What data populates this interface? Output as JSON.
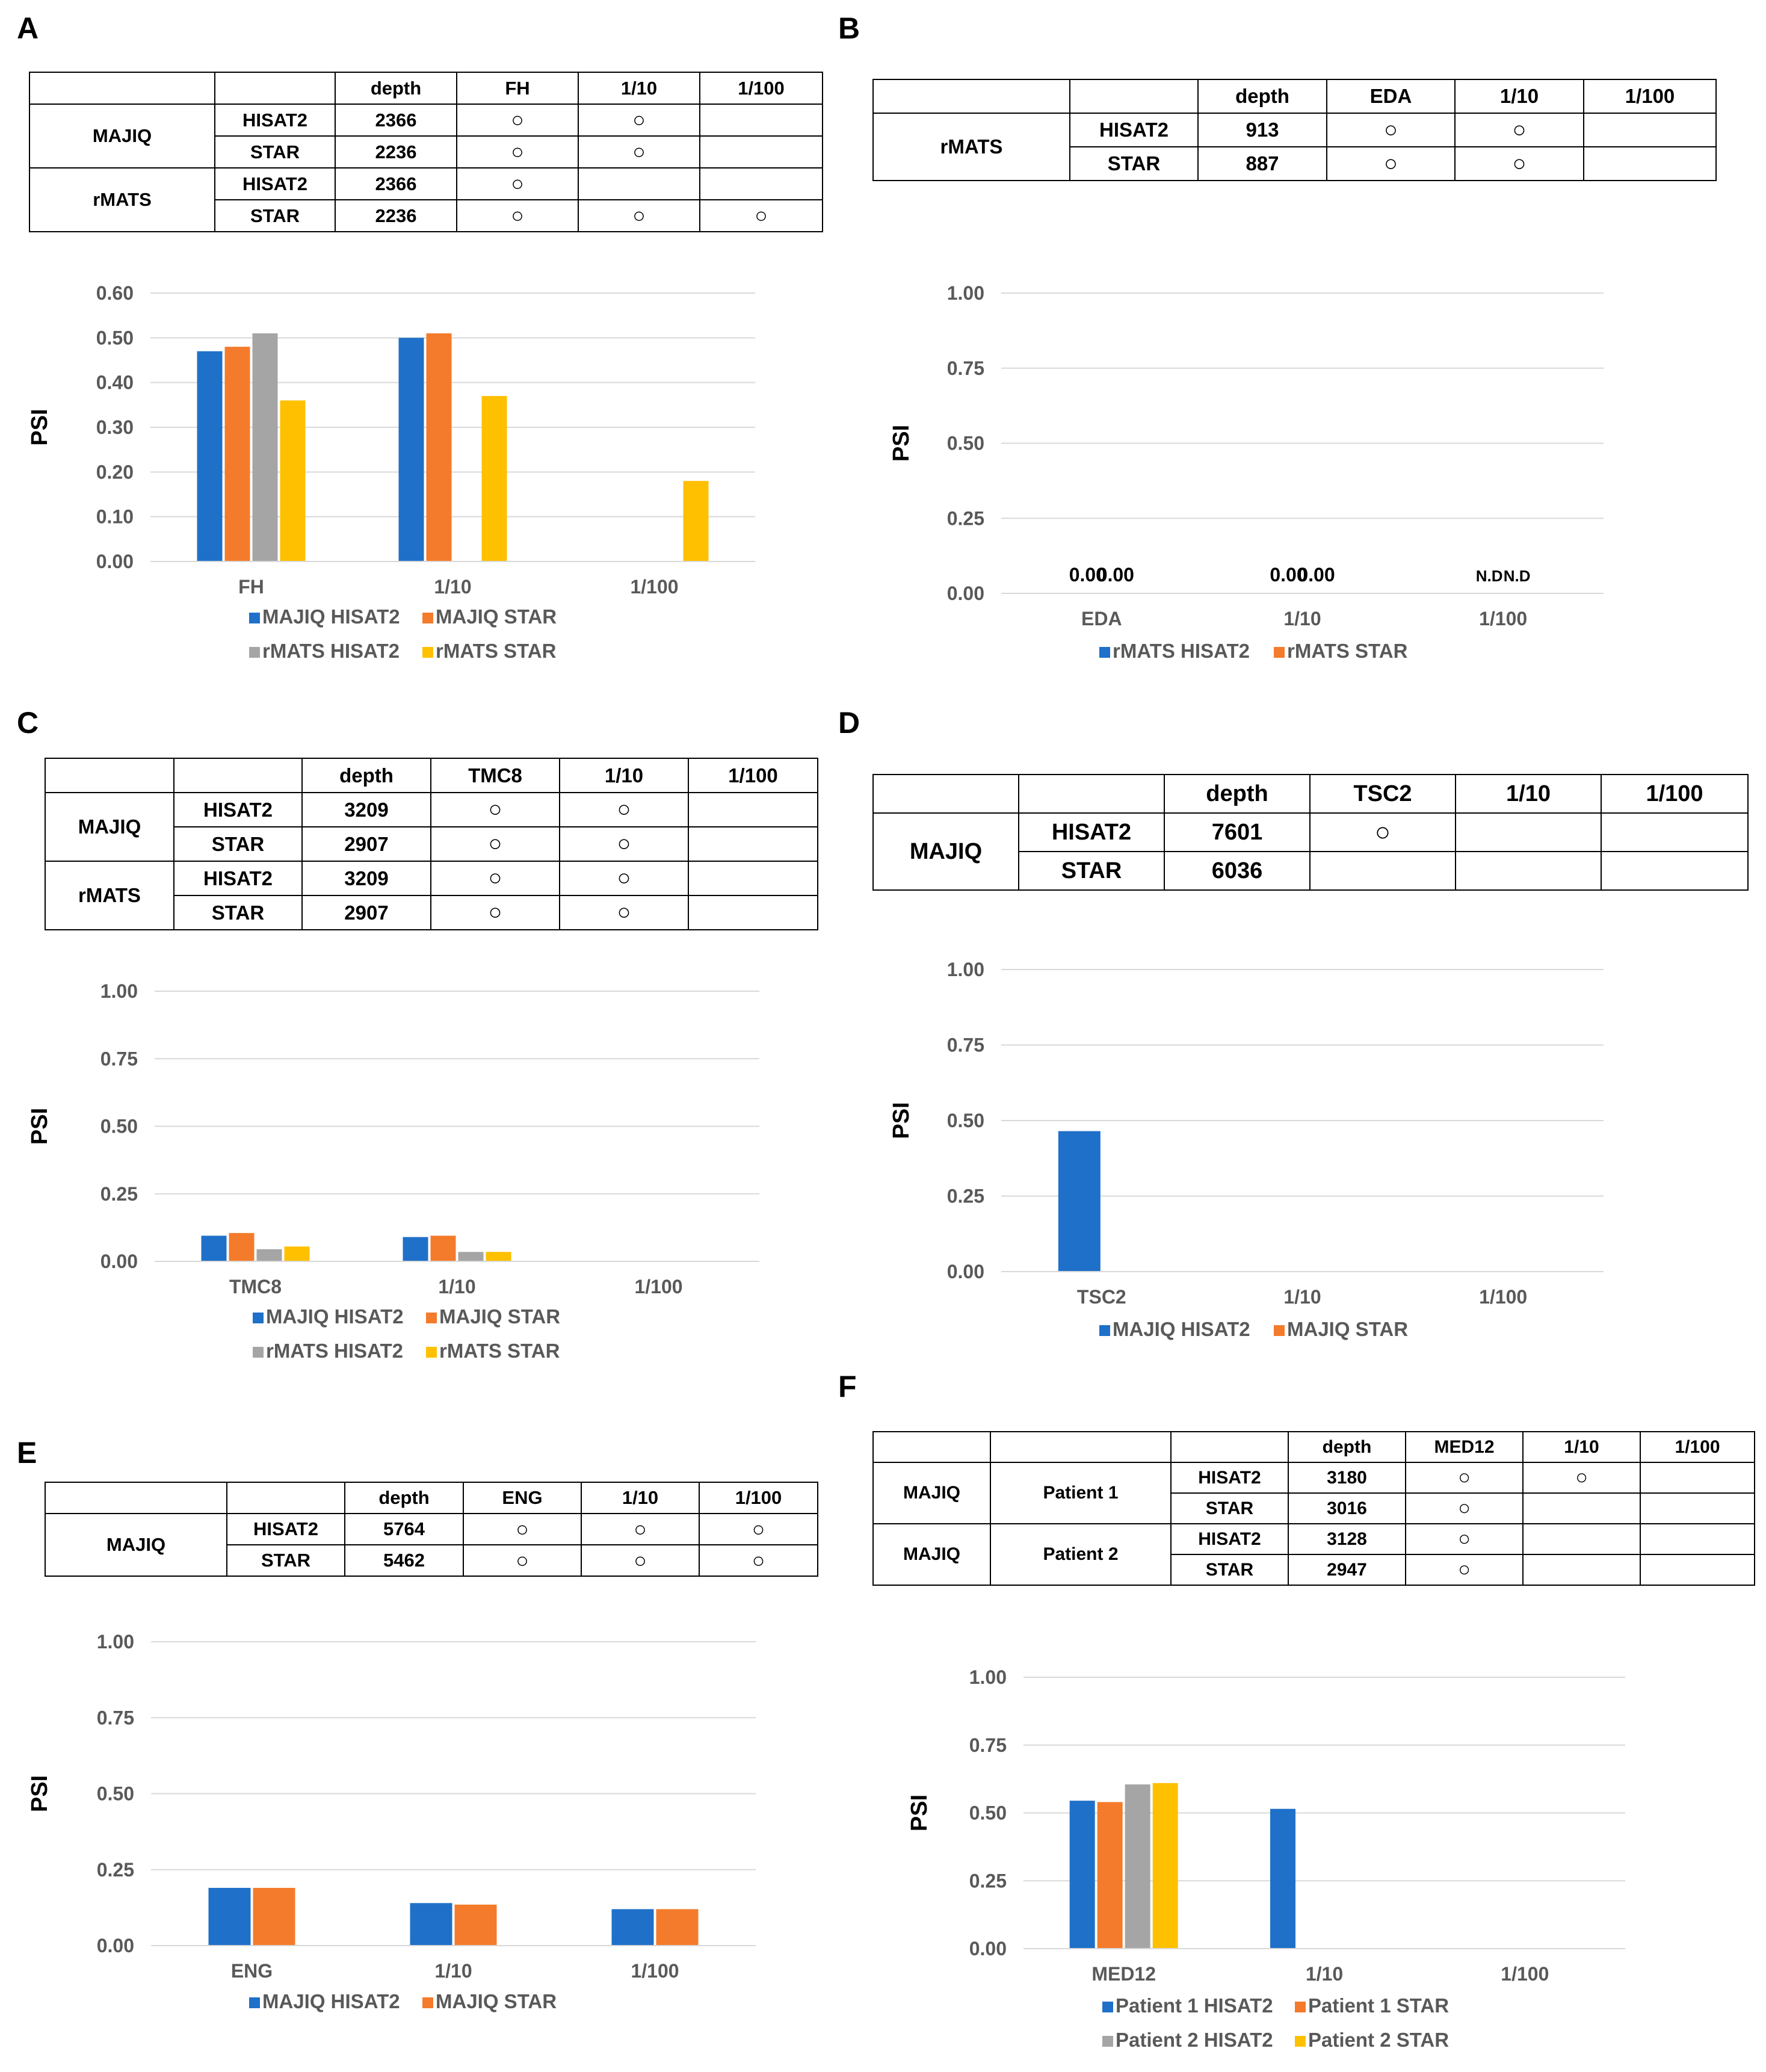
{
  "panels": [
    {
      "id": "A",
      "table": {
        "header": [
          "",
          "",
          "depth",
          "FH",
          "1/10",
          "1/100"
        ],
        "rows": [
          {
            "tool": "MAJIQ",
            "tool_span": 2,
            "aligner": "HISAT2",
            "depth": "2366",
            "marks": [
              "○",
              "○",
              ""
            ]
          },
          {
            "aligner": "STAR",
            "depth": "2236",
            "marks": [
              "○",
              "○",
              ""
            ]
          },
          {
            "tool": "rMATS",
            "tool_span": 2,
            "aligner": "HISAT2",
            "depth": "2366",
            "marks": [
              "○",
              "",
              ""
            ]
          },
          {
            "aligner": "STAR",
            "depth": "2236",
            "marks": [
              "○",
              "○",
              "○"
            ]
          }
        ]
      },
      "chart_data": {
        "type": "bar",
        "categories": [
          "FH",
          "1/10",
          "1/100"
        ],
        "ylabel": "PSI",
        "ylim": [
          0,
          0.6
        ],
        "yticks": [
          "0.00",
          "0.10",
          "0.20",
          "0.30",
          "0.40",
          "0.50",
          "0.60"
        ],
        "grid": true,
        "legend_position": "bottom",
        "legend_rows": [
          [
            0,
            1
          ],
          [
            2,
            3
          ]
        ],
        "series": [
          {
            "name": "MAJIQ HISAT2",
            "color": "#1f70c9",
            "values": [
              0.47,
              0.5,
              null
            ]
          },
          {
            "name": "MAJIQ STAR",
            "color": "#f47b2b",
            "values": [
              0.48,
              0.51,
              null
            ]
          },
          {
            "name": "rMATS HISAT2",
            "color": "#a5a5a5",
            "values": [
              0.51,
              null,
              null
            ]
          },
          {
            "name": "rMATS STAR",
            "color": "#ffc000",
            "values": [
              0.36,
              0.37,
              0.18
            ]
          }
        ],
        "annotations": []
      }
    },
    {
      "id": "B",
      "table": {
        "header": [
          "",
          "",
          "depth",
          "EDA",
          "1/10",
          "1/100"
        ],
        "rows": [
          {
            "tool": "rMATS",
            "tool_span": 2,
            "aligner": "HISAT2",
            "depth": "913",
            "marks": [
              "○",
              "○",
              ""
            ]
          },
          {
            "aligner": "STAR",
            "depth": "887",
            "marks": [
              "○",
              "○",
              ""
            ]
          }
        ]
      },
      "chart_data": {
        "type": "bar",
        "categories": [
          "EDA",
          "1/10",
          "1/100"
        ],
        "ylabel": "PSI",
        "ylim": [
          0,
          1
        ],
        "yticks": [
          "0.00",
          "0.25",
          "0.50",
          "0.75",
          "1.00"
        ],
        "grid": true,
        "legend_position": "bottom",
        "legend_rows": [
          [
            0,
            1
          ]
        ],
        "series": [
          {
            "name": "rMATS HISAT2",
            "color": "#1f70c9",
            "values": [
              0,
              0,
              null
            ]
          },
          {
            "name": "rMATS STAR",
            "color": "#f47b2b",
            "values": [
              0,
              0,
              null
            ]
          }
        ],
        "annotations": [
          {
            "category": 0,
            "series": 0,
            "text": "0.00"
          },
          {
            "category": 0,
            "series": 1,
            "text": "0.00"
          },
          {
            "category": 1,
            "series": 0,
            "text": "0.00"
          },
          {
            "category": 1,
            "series": 1,
            "text": "0.00"
          },
          {
            "category": 2,
            "series": 0,
            "text": "N.D"
          },
          {
            "category": 2,
            "series": 1,
            "text": "N.D"
          }
        ]
      }
    },
    {
      "id": "C",
      "table": {
        "header": [
          "",
          "",
          "depth",
          "TMC8",
          "1/10",
          "1/100"
        ],
        "rows": [
          {
            "tool": "MAJIQ",
            "tool_span": 2,
            "aligner": "HISAT2",
            "depth": "3209",
            "marks": [
              "○",
              "○",
              ""
            ]
          },
          {
            "aligner": "STAR",
            "depth": "2907",
            "marks": [
              "○",
              "○",
              ""
            ]
          },
          {
            "tool": "rMATS",
            "tool_span": 2,
            "aligner": "HISAT2",
            "depth": "3209",
            "marks": [
              "○",
              "○",
              ""
            ]
          },
          {
            "aligner": "STAR",
            "depth": "2907",
            "marks": [
              "○",
              "○",
              ""
            ]
          }
        ]
      },
      "chart_data": {
        "type": "bar",
        "categories": [
          "TMC8",
          "1/10",
          "1/100"
        ],
        "ylabel": "PSI",
        "ylim": [
          0,
          1
        ],
        "yticks": [
          "0.00",
          "0.25",
          "0.50",
          "0.75",
          "1.00"
        ],
        "grid": true,
        "legend_position": "bottom",
        "legend_rows": [
          [
            0,
            1
          ],
          [
            2,
            3
          ]
        ],
        "series": [
          {
            "name": "MAJIQ HISAT2",
            "color": "#1f70c9",
            "values": [
              0.095,
              0.09,
              null
            ]
          },
          {
            "name": "MAJIQ STAR",
            "color": "#f47b2b",
            "values": [
              0.105,
              0.095,
              null
            ]
          },
          {
            "name": "rMATS HISAT2",
            "color": "#a5a5a5",
            "values": [
              0.045,
              0.035,
              null
            ]
          },
          {
            "name": "rMATS STAR",
            "color": "#ffc000",
            "values": [
              0.055,
              0.035,
              null
            ]
          }
        ],
        "annotations": []
      }
    },
    {
      "id": "D",
      "table": {
        "header": [
          "",
          "",
          "depth",
          "TSC2",
          "1/10",
          "1/100"
        ],
        "rows": [
          {
            "tool": "MAJIQ",
            "tool_span": 2,
            "aligner": "HISAT2",
            "depth": "7601",
            "marks": [
              "○",
              "",
              ""
            ]
          },
          {
            "aligner": "STAR",
            "depth": "6036",
            "marks": [
              "",
              "",
              ""
            ]
          }
        ]
      },
      "chart_data": {
        "type": "bar",
        "categories": [
          "TSC2",
          "1/10",
          "1/100"
        ],
        "ylabel": "PSI",
        "ylim": [
          0,
          1
        ],
        "yticks": [
          "0.00",
          "0.25",
          "0.50",
          "0.75",
          "1.00"
        ],
        "grid": true,
        "legend_position": "bottom",
        "legend_rows": [
          [
            0,
            1
          ]
        ],
        "series": [
          {
            "name": "MAJIQ HISAT2",
            "color": "#1f70c9",
            "values": [
              0.465,
              null,
              null
            ]
          },
          {
            "name": "MAJIQ STAR",
            "color": "#f47b2b",
            "values": [
              null,
              null,
              null
            ]
          }
        ],
        "annotations": []
      }
    },
    {
      "id": "E",
      "table": {
        "header": [
          "",
          "",
          "depth",
          "ENG",
          "1/10",
          "1/100"
        ],
        "rows": [
          {
            "tool": "MAJIQ",
            "tool_span": 2,
            "aligner": "HISAT2",
            "depth": "5764",
            "marks": [
              "○",
              "○",
              "○"
            ]
          },
          {
            "aligner": "STAR",
            "depth": "5462",
            "marks": [
              "○",
              "○",
              "○"
            ]
          }
        ]
      },
      "chart_data": {
        "type": "bar",
        "categories": [
          "ENG",
          "1/10",
          "1/100"
        ],
        "ylabel": "PSI",
        "ylim": [
          0,
          1
        ],
        "yticks": [
          "0.00",
          "0.25",
          "0.50",
          "0.75",
          "1.00"
        ],
        "grid": true,
        "legend_position": "bottom",
        "legend_rows": [
          [
            0,
            1
          ]
        ],
        "series": [
          {
            "name": "MAJIQ HISAT2",
            "color": "#1f70c9",
            "values": [
              0.19,
              0.14,
              0.12
            ]
          },
          {
            "name": "MAJIQ STAR",
            "color": "#f47b2b",
            "values": [
              0.19,
              0.135,
              0.12
            ]
          }
        ],
        "annotations": []
      }
    },
    {
      "id": "F",
      "table": {
        "header": [
          "",
          "",
          "",
          "depth",
          "MED12",
          "1/10",
          "1/100"
        ],
        "rows": [
          {
            "tool": "MAJIQ",
            "tool_span": 2,
            "patient": "Patient 1",
            "aligner": "HISAT2",
            "depth": "3180",
            "marks": [
              "○",
              "○",
              ""
            ]
          },
          {
            "aligner": "STAR",
            "depth": "3016",
            "marks": [
              "○",
              "",
              ""
            ]
          },
          {
            "tool": "MAJIQ",
            "tool_span": 2,
            "patient": "Patient 2",
            "aligner": "HISAT2",
            "depth": "3128",
            "marks": [
              "○",
              "",
              ""
            ]
          },
          {
            "aligner": "STAR",
            "depth": "2947",
            "marks": [
              "○",
              "",
              ""
            ]
          }
        ]
      },
      "chart_data": {
        "type": "bar",
        "categories": [
          "MED12",
          "1/10",
          "1/100"
        ],
        "ylabel": "PSI",
        "ylim": [
          0,
          1
        ],
        "yticks": [
          "0.00",
          "0.25",
          "0.50",
          "0.75",
          "1.00"
        ],
        "grid": true,
        "legend_position": "bottom",
        "legend_rows": [
          [
            0,
            1
          ],
          [
            2,
            3
          ]
        ],
        "series": [
          {
            "name": "Patient 1 HISAT2",
            "color": "#1f70c9",
            "values": [
              0.545,
              0.515,
              null
            ]
          },
          {
            "name": "Patient 1 STAR",
            "color": "#f47b2b",
            "values": [
              0.54,
              null,
              null
            ]
          },
          {
            "name": "Patient 2 HISAT2",
            "color": "#a5a5a5",
            "values": [
              0.605,
              null,
              null
            ]
          },
          {
            "name": "Patient 2 STAR",
            "color": "#ffc000",
            "values": [
              0.61,
              null,
              null
            ]
          }
        ],
        "annotations": []
      }
    }
  ]
}
